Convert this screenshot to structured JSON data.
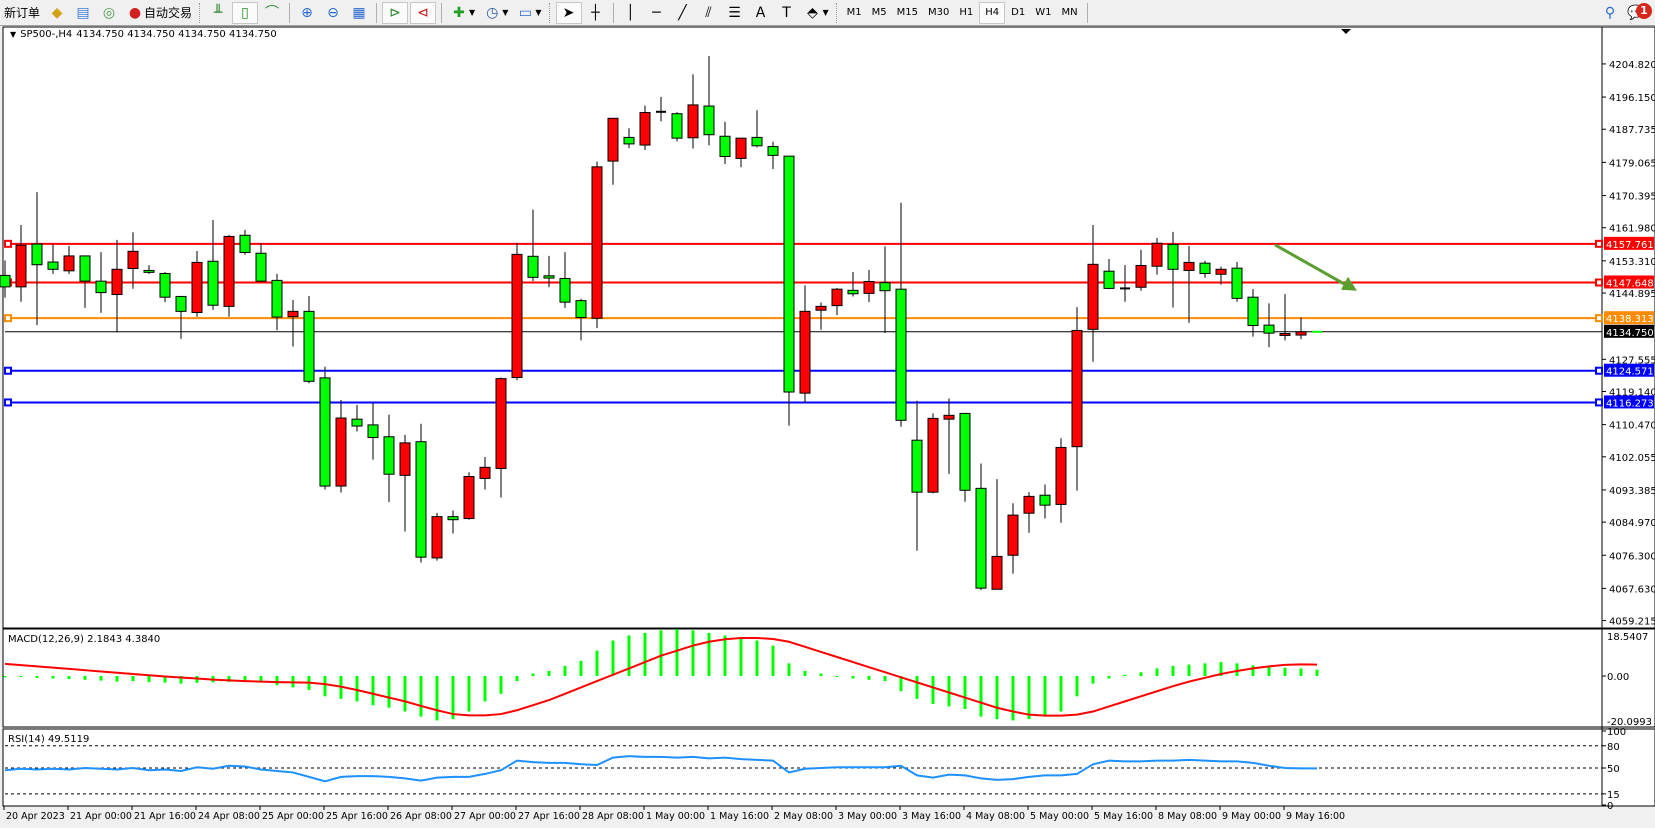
{
  "toolbar": {
    "new_order": "新订单",
    "auto_trading": "自动交易",
    "timeframes": [
      "M1",
      "M5",
      "M15",
      "M30",
      "H1",
      "H4",
      "D1",
      "W1",
      "MN"
    ],
    "active_timeframe": "H4",
    "notification_count": "1"
  },
  "chart": {
    "symbol": "SP500-,H4",
    "ohlc_readout": "4134.750 4134.750 4134.750 4134.750",
    "bull_color": "#ff0000",
    "bear_color": "#00ff00",
    "price_ticks": [
      "4204.820",
      "4196.150",
      "4187.735",
      "4179.065",
      "4170.395",
      "4161.980",
      "4153.310",
      "4144.895",
      "4127.555",
      "4119.140",
      "4110.470",
      "4102.055",
      "4093.385",
      "4084.970",
      "4076.300",
      "4067.630",
      "4059.215"
    ],
    "levels": [
      {
        "price": 4157.761,
        "label": "4157.761",
        "color": "#ff0000"
      },
      {
        "price": 4147.648,
        "label": "4147.648",
        "color": "#ff0000"
      },
      {
        "price": 4138.313,
        "label": "4138.313",
        "color": "#ff8c00"
      },
      {
        "price": 4124.571,
        "label": "4124.571",
        "color": "#0000ff"
      },
      {
        "price": 4116.273,
        "label": "4116.273",
        "color": "#0000ff"
      }
    ],
    "bid": {
      "price": 4134.75,
      "label": "4134.750"
    },
    "arrow": {
      "color": "#5a9e2f",
      "from_price": 4157.5,
      "to_price": 4145.5
    },
    "candles": [
      [
        4149.5,
        4153.4,
        4143.7,
        4146.5
      ],
      [
        4146.5,
        4162.7,
        4142.6,
        4157.4
      ],
      [
        4157.7,
        4171.3,
        4136.5,
        4152.3
      ],
      [
        4153.0,
        4157.7,
        4149.9,
        4151.1
      ],
      [
        4150.7,
        4157.2,
        4149.9,
        4154.6
      ],
      [
        4154.6,
        4154.6,
        4141.0,
        4148.0
      ],
      [
        4148.0,
        4155.6,
        4139.7,
        4145.0
      ],
      [
        4144.5,
        4158.8,
        4134.6,
        4151.1
      ],
      [
        4151.3,
        4160.8,
        4146.0,
        4155.8
      ],
      [
        4150.8,
        4152.2,
        4149.9,
        4150.3
      ],
      [
        4150.0,
        4150.4,
        4142.5,
        4143.8
      ],
      [
        4144.0,
        4144.0,
        4132.9,
        4140.1
      ],
      [
        4139.8,
        4155.9,
        4138.7,
        4152.9
      ],
      [
        4153.2,
        4164.0,
        4140.5,
        4141.7
      ],
      [
        4141.4,
        4160.1,
        4138.7,
        4159.7
      ],
      [
        4160.0,
        4161.4,
        4154.9,
        4155.5
      ],
      [
        4155.3,
        4157.9,
        4148.0,
        4148.0
      ],
      [
        4148.2,
        4149.9,
        4135.2,
        4138.6
      ],
      [
        4138.7,
        4143.1,
        4130.9,
        4140.1
      ],
      [
        4140.1,
        4144.1,
        4121.3,
        4121.8
      ],
      [
        4122.7,
        4125.6,
        4093.5,
        4094.4
      ],
      [
        4094.4,
        4116.9,
        4092.7,
        4112.2
      ],
      [
        4111.9,
        4115.6,
        4108.7,
        4110.1
      ],
      [
        4110.4,
        4116.1,
        4101.3,
        4107.1
      ],
      [
        4107.3,
        4113.1,
        4090.2,
        4097.5
      ],
      [
        4097.2,
        4107.8,
        4082.5,
        4105.7
      ],
      [
        4106.0,
        4110.7,
        4074.4,
        4075.8
      ],
      [
        4075.6,
        4087.4,
        4074.9,
        4086.4
      ],
      [
        4086.4,
        4088.0,
        4082.0,
        4085.6
      ],
      [
        4085.9,
        4098.0,
        4085.6,
        4096.9
      ],
      [
        4096.4,
        4102.0,
        4093.5,
        4099.3
      ],
      [
        4099.0,
        4122.8,
        4091.4,
        4122.5
      ],
      [
        4122.8,
        4158.0,
        4122.1,
        4155.0
      ],
      [
        4154.5,
        4166.7,
        4148.0,
        4149.0
      ],
      [
        4149.4,
        4154.6,
        4146.4,
        4148.8
      ],
      [
        4148.7,
        4155.6,
        4141.0,
        4142.5
      ],
      [
        4142.9,
        4143.4,
        4132.5,
        4138.5
      ],
      [
        4138.3,
        4179.3,
        4135.7,
        4177.9
      ],
      [
        4179.4,
        4190.6,
        4173.2,
        4190.6
      ],
      [
        4185.6,
        4188.0,
        4182.8,
        4183.9
      ],
      [
        4183.6,
        4193.9,
        4182.3,
        4192.1
      ],
      [
        4192.2,
        4196.2,
        4189.8,
        4192.3
      ],
      [
        4191.8,
        4192.2,
        4184.6,
        4185.4
      ],
      [
        4185.5,
        4202.1,
        4182.7,
        4194.1
      ],
      [
        4193.8,
        4206.9,
        4183.5,
        4186.3
      ],
      [
        4185.9,
        4189.7,
        4178.6,
        4180.6
      ],
      [
        4180.1,
        4185.4,
        4177.8,
        4185.4
      ],
      [
        4185.6,
        4192.7,
        4183.0,
        4183.4
      ],
      [
        4183.2,
        4184.5,
        4177.3,
        4180.9
      ],
      [
        4180.7,
        4180.7,
        4110.2,
        4119.0
      ],
      [
        4118.7,
        4146.9,
        4116.1,
        4140.1
      ],
      [
        4140.4,
        4142.4,
        4135.3,
        4141.4
      ],
      [
        4141.6,
        4146.2,
        4139.1,
        4145.9
      ],
      [
        4145.6,
        4150.4,
        4144.0,
        4144.7
      ],
      [
        4144.8,
        4150.9,
        4142.5,
        4147.9
      ],
      [
        4147.6,
        4157.1,
        4134.4,
        4145.5
      ],
      [
        4145.9,
        4168.5,
        4109.9,
        4111.6
      ],
      [
        4106.4,
        4116.7,
        4077.5,
        4092.8
      ],
      [
        4092.8,
        4113.4,
        4092.5,
        4112.1
      ],
      [
        4111.9,
        4117.3,
        4097.6,
        4112.9
      ],
      [
        4113.4,
        4113.4,
        4090.3,
        4093.3
      ],
      [
        4093.8,
        4100.3,
        4067.2,
        4067.7
      ],
      [
        4067.4,
        4096.2,
        4067.4,
        4076.0
      ],
      [
        4076.3,
        4089.9,
        4071.5,
        4086.8
      ],
      [
        4087.3,
        4092.8,
        4082.2,
        4091.7
      ],
      [
        4092.0,
        4094.8,
        4085.9,
        4089.4
      ],
      [
        4089.6,
        4106.9,
        4084.8,
        4104.5
      ],
      [
        4104.7,
        4141.2,
        4093.2,
        4135.1
      ],
      [
        4135.4,
        4162.7,
        4126.9,
        4152.4
      ],
      [
        4150.6,
        4153.8,
        4145.9,
        4146.1
      ],
      [
        4146.1,
        4152.2,
        4142.6,
        4146.0
      ],
      [
        4146.4,
        4156.2,
        4145.5,
        4152.1
      ],
      [
        4151.9,
        4159.3,
        4149.7,
        4157.9
      ],
      [
        4157.6,
        4160.9,
        4141.1,
        4151.1
      ],
      [
        4150.8,
        4157.2,
        4137.1,
        4152.9
      ],
      [
        4152.7,
        4153.3,
        4148.9,
        4150.0
      ],
      [
        4149.8,
        4151.8,
        4147.1,
        4151.1
      ],
      [
        4151.4,
        4153.0,
        4142.6,
        4143.5
      ],
      [
        4143.8,
        4145.9,
        4133.5,
        4136.4
      ],
      [
        4136.5,
        4142.2,
        4130.7,
        4134.4
      ],
      [
        4133.8,
        4144.6,
        4132.5,
        4134.3
      ],
      [
        4133.9,
        4138.5,
        4132.8,
        4134.75
      ],
      [
        4134.75,
        4134.75,
        4134.75,
        4134.75
      ]
    ],
    "time_labels": [
      "20 Apr 2023",
      "21 Apr 00:00",
      "21 Apr 16:00",
      "24 Apr 08:00",
      "25 Apr 00:00",
      "25 Apr 16:00",
      "26 Apr 08:00",
      "27 Apr 00:00",
      "27 Apr 16:00",
      "28 Apr 08:00",
      "1 May 00:00",
      "1 May 16:00",
      "2 May 08:00",
      "3 May 00:00",
      "3 May 16:00",
      "4 May 08:00",
      "5 May 00:00",
      "5 May 16:00",
      "8 May 08:00",
      "9 May 00:00",
      "9 May 16:00"
    ]
  },
  "macd": {
    "label": "MACD(12,26,9) 2.1843 4.3840",
    "axis_labels": [
      "18.5407",
      "0.00",
      "-20.0993"
    ],
    "range": [
      -20.0993,
      18.5407
    ],
    "histogram_color": "#00ff00",
    "signal_color": "#ff0000",
    "histogram": [
      -0.5,
      -0.3,
      -0.8,
      -1.0,
      -1.2,
      -1.5,
      -1.8,
      -2.2,
      -2.0,
      -2.4,
      -2.6,
      -3.0,
      -2.7,
      -2.5,
      -2.3,
      -2.2,
      -2.6,
      -3.6,
      -4.5,
      -5.5,
      -8,
      -9,
      -10,
      -11.5,
      -12.5,
      -14,
      -16,
      -17.5,
      -17,
      -14,
      -10,
      -7,
      -2,
      1,
      2,
      4,
      6,
      10,
      14,
      16,
      17,
      18,
      18.5,
      18,
      17,
      16,
      15,
      14,
      12,
      5,
      2,
      1,
      0,
      -1,
      -1.5,
      -2,
      -6,
      -9,
      -11,
      -12,
      -13,
      -16,
      -17,
      -17.5,
      -17,
      -16,
      -14,
      -8,
      -3,
      -1,
      0.5,
      1.5,
      3,
      4,
      4.5,
      5,
      5.5,
      5,
      4.2,
      3.8,
      3.3,
      3,
      2.5
    ],
    "signal": [
      4.8,
      4.3,
      3.8,
      3.3,
      2.8,
      2.3,
      1.8,
      1.3,
      0.8,
      0.3,
      -0.2,
      -0.6,
      -1.0,
      -1.4,
      -1.7,
      -2.0,
      -2.2,
      -2.4,
      -2.5,
      -2.6,
      -3.2,
      -4.2,
      -5.5,
      -7,
      -8.5,
      -10,
      -11.8,
      -13.5,
      -15,
      -15.5,
      -15.5,
      -15,
      -13.5,
      -11.5,
      -9.5,
      -7,
      -4.5,
      -2,
      0.5,
      3,
      5.5,
      8,
      10,
      12,
      13.5,
      14.5,
      15,
      15,
      14.6,
      13.5,
      11.5,
      9.5,
      7.5,
      5.5,
      3.5,
      1.5,
      -0.5,
      -2.5,
      -4.5,
      -6.5,
      -8.5,
      -10.5,
      -12.5,
      -14,
      -15.2,
      -15.6,
      -15.6,
      -15.2,
      -14,
      -12,
      -10,
      -8,
      -6,
      -4,
      -2.2,
      -0.7,
      0.8,
      2,
      3,
      3.8,
      4.4,
      4.6,
      4.5
    ]
  },
  "rsi": {
    "label": "RSI(14) 49.5119",
    "axis_labels": [
      "100",
      "80",
      "50",
      "15",
      "0"
    ],
    "levels": [
      80,
      50,
      15
    ],
    "color": "#1e90ff",
    "values": [
      47,
      49,
      48,
      49,
      48,
      50,
      49,
      48,
      50,
      47,
      48,
      46,
      51,
      49,
      53,
      52,
      48,
      46,
      44,
      38,
      32,
      38,
      39,
      39,
      38,
      36,
      33,
      37,
      38,
      38,
      42,
      47,
      60,
      58,
      57,
      57,
      55,
      54,
      64,
      66,
      65,
      65,
      64,
      65,
      63,
      64,
      62,
      61,
      60,
      44,
      49,
      50,
      51,
      51,
      51,
      51,
      53,
      40,
      37,
      41,
      40,
      36,
      34,
      35,
      38,
      40,
      40,
      42,
      55,
      60,
      59,
      59,
      60,
      60,
      61,
      60,
      59,
      59,
      57,
      53,
      50,
      49.5,
      49.5
    ]
  }
}
